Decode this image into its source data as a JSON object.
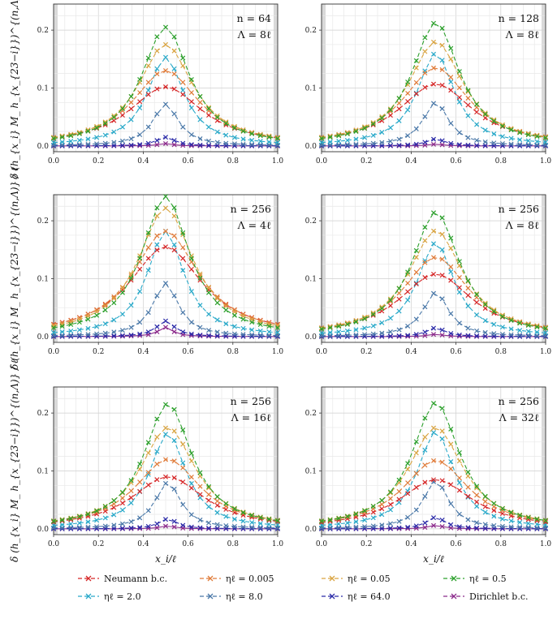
{
  "figure": {
    "ylabel": "δ (h_{x_i} M_ h_{x_{23−i}})^{(n,Λ)} / ℓ",
    "xlabel": "x_i/ℓ"
  },
  "colors": {
    "Neumann": "#d62728",
    "eta0005": "#e07b39",
    "eta005": "#d9a441",
    "eta05": "#2ca02c",
    "eta2": "#29a9c9",
    "eta8": "#4a78a8",
    "eta64": "#2a2aa8",
    "Dirichlet": "#8b2a8b"
  },
  "legend": [
    {
      "label": "Neumann b.c.",
      "color": "#d62728"
    },
    {
      "label": "ηℓ = 0.005",
      "color": "#e07b39"
    },
    {
      "label": "ηℓ = 0.05",
      "color": "#d9a441"
    },
    {
      "label": "ηℓ = 0.5",
      "color": "#2ca02c"
    },
    {
      "label": "ηℓ = 2.0",
      "color": "#29a9c9"
    },
    {
      "label": "ηℓ = 8.0",
      "color": "#4a78a8"
    },
    {
      "label": "ηℓ = 64.0",
      "color": "#2a2aa8"
    },
    {
      "label": "Dirichlet b.c.",
      "color": "#8b2a8b"
    }
  ],
  "chart_data": [
    {
      "type": "line",
      "n_label": "n = 64",
      "lambda_label": "Λ = 8ℓ",
      "xlim": [
        0,
        1
      ],
      "ylim": [
        -0.01,
        0.245
      ],
      "xticks": [
        "0.0",
        "0.2",
        "0.4",
        "0.6",
        "0.8",
        "1.0"
      ],
      "yticks": [
        "0.0",
        "0.1",
        "0.2"
      ],
      "peaks": [
        0.102,
        0.13,
        0.175,
        0.205,
        0.153,
        0.072,
        0.015,
        0.004
      ],
      "center": 0.5
    },
    {
      "type": "line",
      "n_label": "n = 128",
      "lambda_label": "Λ = 8ℓ",
      "xlim": [
        0,
        1
      ],
      "ylim": [
        -0.01,
        0.245
      ],
      "xticks": [
        "0.0",
        "0.2",
        "0.4",
        "0.6",
        "0.8",
        "1.0"
      ],
      "yticks": [
        "0.0",
        "0.1",
        "0.2"
      ],
      "peaks": [
        0.107,
        0.135,
        0.18,
        0.213,
        0.16,
        0.075,
        0.012,
        0.003
      ],
      "center": 0.51
    },
    {
      "type": "line",
      "n_label": "n = 256",
      "lambda_label": "Λ = 4ℓ",
      "xlim": [
        0,
        1
      ],
      "ylim": [
        -0.01,
        0.245
      ],
      "xticks": [
        "0.0",
        "0.2",
        "0.4",
        "0.6",
        "0.8",
        "1.0"
      ],
      "yticks": [
        "0.0",
        "0.1",
        "0.2"
      ],
      "peaks": [
        0.155,
        0.182,
        0.222,
        0.242,
        0.182,
        0.092,
        0.027,
        0.016
      ],
      "center": 0.5
    },
    {
      "type": "line",
      "n_label": "n = 256",
      "lambda_label": "Λ = 8ℓ",
      "xlim": [
        0,
        1
      ],
      "ylim": [
        -0.01,
        0.245
      ],
      "xticks": [
        "0.0",
        "0.2",
        "0.4",
        "0.6",
        "0.8",
        "1.0"
      ],
      "yticks": [
        "0.0",
        "0.1",
        "0.2"
      ],
      "peaks": [
        0.108,
        0.137,
        0.183,
        0.215,
        0.162,
        0.076,
        0.015,
        0.004
      ],
      "center": 0.51
    },
    {
      "type": "line",
      "n_label": "n = 256",
      "lambda_label": "Λ = 16ℓ",
      "xlim": [
        0,
        1
      ],
      "ylim": [
        -0.01,
        0.245
      ],
      "xticks": [
        "0.0",
        "0.2",
        "0.4",
        "0.6",
        "0.8",
        "1.0"
      ],
      "yticks": [
        "0.0",
        "0.1",
        "0.2"
      ],
      "peaks": [
        0.09,
        0.12,
        0.175,
        0.216,
        0.165,
        0.08,
        0.017,
        0.005
      ],
      "center": 0.51
    },
    {
      "type": "line",
      "n_label": "n = 256",
      "lambda_label": "Λ = 32ℓ",
      "xlim": [
        0,
        1
      ],
      "ylim": [
        -0.01,
        0.245
      ],
      "xticks": [
        "0.0",
        "0.2",
        "0.4",
        "0.6",
        "0.8",
        "1.0"
      ],
      "yticks": [
        "0.0",
        "0.1",
        "0.2"
      ],
      "peaks": [
        0.085,
        0.118,
        0.175,
        0.218,
        0.168,
        0.083,
        0.02,
        0.006
      ],
      "center": 0.51
    }
  ]
}
